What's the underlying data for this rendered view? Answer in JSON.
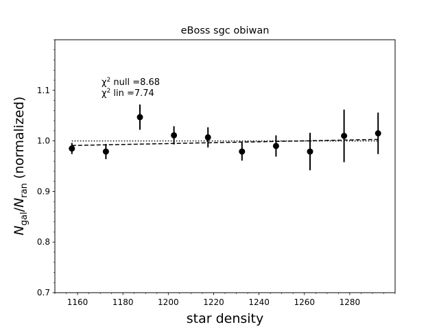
{
  "chart_data": {
    "type": "scatter",
    "title": "eBoss sgc obiwan",
    "xlabel": "star density",
    "ylabel": {
      "symbol_main": "N",
      "sub_1": "gal",
      "slash": "/",
      "sub_2": "ran",
      "suffix": " (normalized)"
    },
    "xlim": [
      1150,
      1300
    ],
    "ylim": [
      0.7,
      1.2
    ],
    "xticks": [
      1160,
      1180,
      1200,
      1220,
      1240,
      1260,
      1280
    ],
    "xtick_labels": [
      "1160",
      "1180",
      "1200",
      "1220",
      "1240",
      "1260",
      "1280"
    ],
    "yticks": [
      0.7,
      0.8,
      0.9,
      1.0,
      1.1
    ],
    "ytick_labels": [
      "0.7",
      "0.8",
      "0.9",
      "1.0",
      "1.1"
    ],
    "x_minor_step": 5,
    "y_minor_step": 0.02,
    "grid": false,
    "points": {
      "x": [
        1157.5,
        1172.5,
        1187.5,
        1202.5,
        1217.5,
        1232.5,
        1247.5,
        1262.5,
        1277.5,
        1292.5
      ],
      "y": [
        0.985,
        0.979,
        1.047,
        1.011,
        1.007,
        0.979,
        0.99,
        0.979,
        1.01,
        1.015
      ],
      "yerr": [
        0.011,
        0.015,
        0.025,
        0.018,
        0.02,
        0.018,
        0.021,
        0.037,
        0.052,
        0.041
      ],
      "color": "#000000"
    },
    "null_line": {
      "x": [
        1157.5,
        1292.5
      ],
      "y": [
        1.0,
        1.0
      ],
      "style": "dotted",
      "color": "#000000"
    },
    "lin_line": {
      "x": [
        1157.5,
        1292.5
      ],
      "y": [
        0.991,
        1.003
      ],
      "style": "dashed",
      "color": "#000000"
    },
    "annotations": [
      {
        "prefix": "χ",
        "sup": "2",
        "text": " null =8.68"
      },
      {
        "prefix": "χ",
        "sup": "2",
        "text": " lin =7.74"
      }
    ]
  }
}
